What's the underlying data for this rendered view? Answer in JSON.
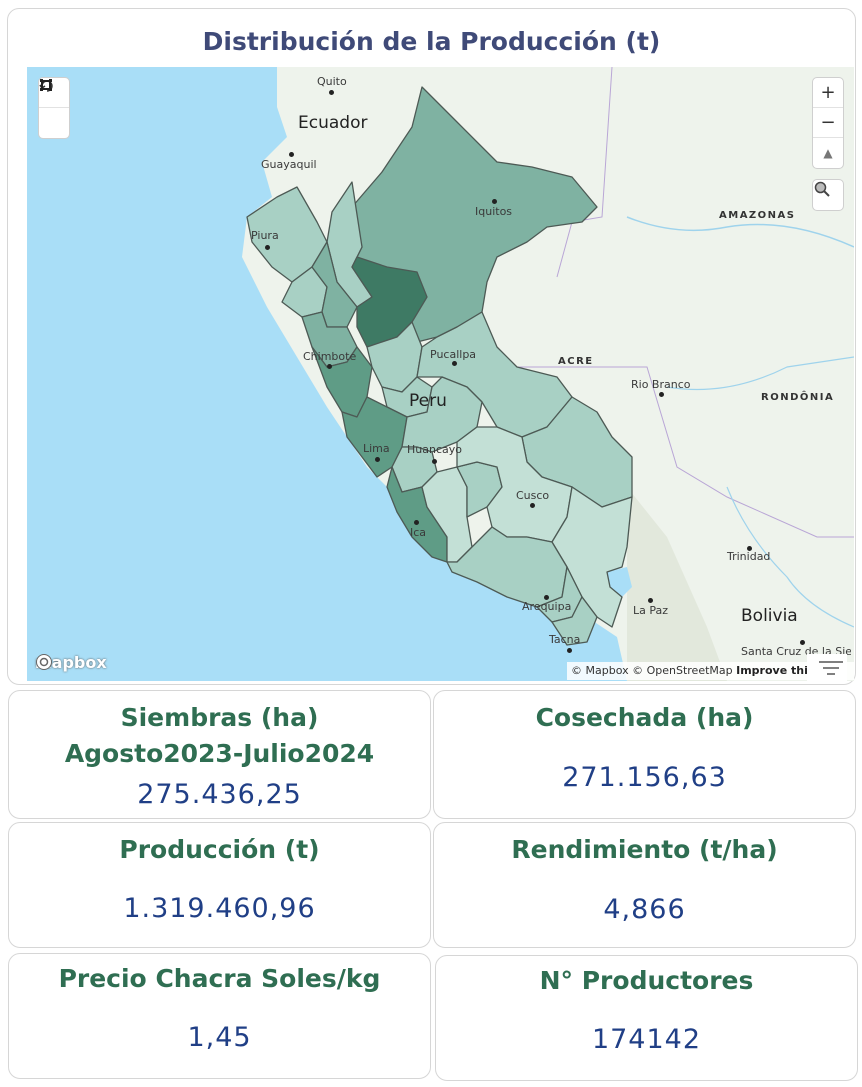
{
  "map": {
    "title": "Distribución de la Producción (t)",
    "labels": {
      "quito": "Quito",
      "ecuador": "Ecuador",
      "guayaquil": "Guayaquil",
      "iquitos": "Iquitos",
      "amazonas": "AMAZONAS",
      "piura": "Piura",
      "chimbote": "Chimbote",
      "pucallpa": "Pucallpa",
      "acre": "ACRE",
      "rio_branco": "Rio Branco",
      "rondonia": "RONDÔNIA",
      "peru": "Peru",
      "lima": "Lima",
      "huancayo": "Huancayo",
      "cusco": "Cusco",
      "ica": "Ica",
      "trinidad": "Trinidad",
      "arequipa": "Arequipa",
      "la_paz": "La Paz",
      "bolivia": "Bolivia",
      "tacna": "Tacna",
      "santa_cruz": "Santa Cruz de la Sierra"
    },
    "controls": {
      "zoom_in": "+",
      "zoom_out": "−",
      "compass": "▲"
    },
    "logo": "mapbox",
    "attribution": {
      "mapbox": "© Mapbox",
      "osm": "© OpenStreetMap",
      "improve": "Improve this map"
    },
    "colors": {
      "water": "#a9def7",
      "land": "#eef3ec",
      "darkest": "#3e7a64",
      "dark": "#5f9c86",
      "mid": "#7fb2a2",
      "light": "#a8d0c4",
      "lighter": "#c3e0d6"
    }
  },
  "kpis": {
    "siembras": {
      "title": "Siembras (ha)",
      "subtitle": "Agosto2023-Julio2024",
      "value": "275.436,25"
    },
    "cosechada": {
      "title": "Cosechada (ha)",
      "value": "271.156,63"
    },
    "produccion": {
      "title": "Producción (t)",
      "value": "1.319.460,96"
    },
    "rendimiento": {
      "title": "Rendimiento (t/ha)",
      "value": "4,866"
    },
    "precio": {
      "title": "Precio Chacra Soles/kg",
      "value": "1,45"
    },
    "productores": {
      "title": "N° Productores",
      "value": "174142"
    }
  }
}
